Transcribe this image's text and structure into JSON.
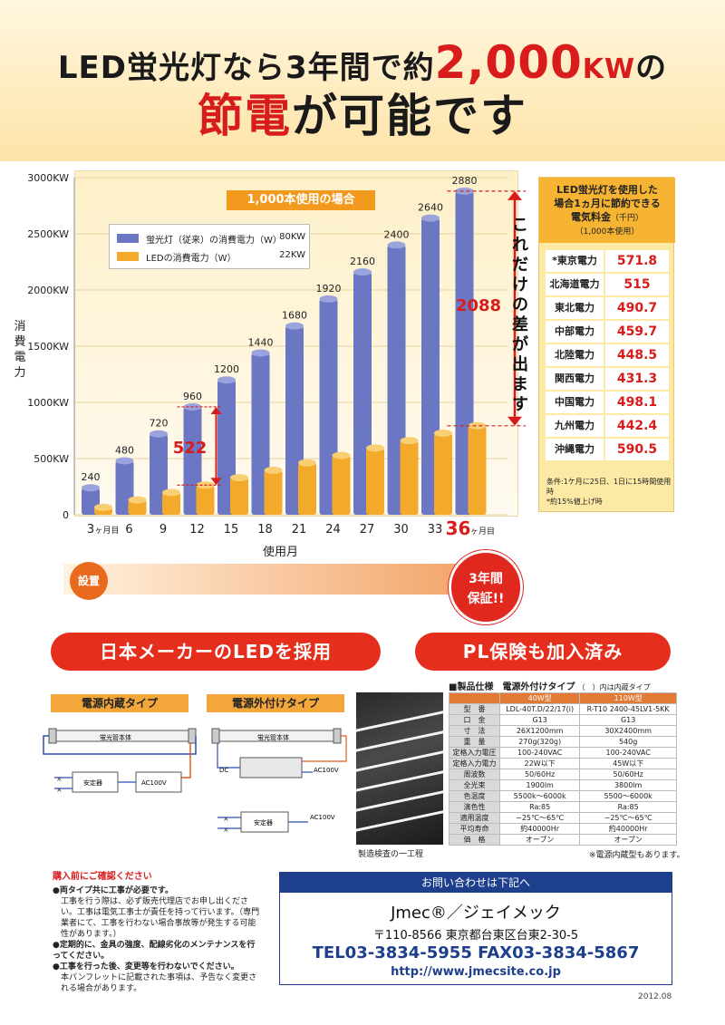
{
  "header": {
    "line1_a": "LED蛍光灯なら3年間で約",
    "line1_big": "2,000",
    "line1_unit": "KW",
    "line1_b": "の",
    "line2_red": "節電",
    "line2_rest": "が可能です"
  },
  "chart_data": {
    "type": "bar",
    "title": "1,000本使用の場合",
    "ylabel": "消費電力",
    "xlabel": "使用月",
    "y_ticks": [
      "0",
      "500KW",
      "1000KW",
      "1500KW",
      "2000KW",
      "2500KW",
      "3000KW"
    ],
    "ylim": [
      0,
      3000
    ],
    "categories": [
      "3ヶ月目",
      "6",
      "9",
      "12",
      "15",
      "18",
      "21",
      "24",
      "27",
      "30",
      "33",
      "36ヶ月目"
    ],
    "series": [
      {
        "name": "蛍光灯（従来）の消費電力（W）",
        "legend_value": "80KW",
        "color": "#6b77c2",
        "values": [
          240,
          480,
          720,
          960,
          1200,
          1440,
          1680,
          1920,
          2160,
          2400,
          2640,
          2880
        ]
      },
      {
        "name": "LEDの消費電力（W）",
        "legend_value": "22KW",
        "color": "#f3a92a",
        "values": [
          66,
          132,
          198,
          264,
          330,
          396,
          462,
          528,
          594,
          660,
          726,
          792
        ]
      }
    ],
    "value_labels": [
      "240",
      "480",
      "720",
      "960",
      "1200",
      "1440",
      "1680",
      "1920",
      "2160",
      "2400",
      "2640",
      "2880"
    ],
    "annotations": [
      {
        "text": "522",
        "at_category": "12"
      },
      {
        "text": "2088",
        "at_category": "36ヶ月目"
      }
    ],
    "side_text": "これだけの差が出ます"
  },
  "price": {
    "head_line1": "LED蛍光灯を使用した",
    "head_line2": "場合1ヵ月に節約できる",
    "head_line3": "電気料金",
    "head_unit": "（千円）",
    "head_line4": "（1,000本使用）",
    "rows": [
      {
        "name": "*東京電力",
        "value": "571.8"
      },
      {
        "name": "北海道電力",
        "value": "515"
      },
      {
        "name": "東北電力",
        "value": "490.7"
      },
      {
        "name": "中部電力",
        "value": "459.7"
      },
      {
        "name": "北陸電力",
        "value": "448.5"
      },
      {
        "name": "関西電力",
        "value": "431.3"
      },
      {
        "name": "中国電力",
        "value": "498.1"
      },
      {
        "name": "九州電力",
        "value": "442.4"
      },
      {
        "name": "沖縄電力",
        "value": "590.5"
      }
    ],
    "note1": "条件:1ケ月に25日、1日に15時間使用時",
    "note2": "*約15%値上げ時"
  },
  "timeline": {
    "start": "設置",
    "end_line1": "3年間",
    "end_line2": "保証!!"
  },
  "banners": {
    "left": "日本メーカーのLEDを採用",
    "right": "PL保険も加入済み"
  },
  "diagrams": {
    "internal_title": "電源内蔵タイプ",
    "external_title": "電源外付けタイプ",
    "body_label": "蛍光管本体",
    "ballast": "安定器",
    "ac": "AC100V",
    "dc": "DC"
  },
  "photo_caption": "製造検査の一工程",
  "spec": {
    "title_main": "■製品仕様　電源外付けタイプ",
    "title_note": "（　）内は内蔵タイプ",
    "cols": [
      "40W型",
      "110W型"
    ],
    "rows": [
      {
        "k": "型　番",
        "a": "LDL-40T.D/22/17(i)",
        "b": "R-T10 2400-45LV1-5KK"
      },
      {
        "k": "口　金",
        "a": "G13",
        "b": "G13"
      },
      {
        "k": "寸　法",
        "a": "26X1200mm",
        "b": "30X2400mm"
      },
      {
        "k": "重　量",
        "a": "270g(320g)",
        "b": "540g"
      },
      {
        "k": "定格入力電圧",
        "a": "100-240VAC",
        "b": "100-240VAC"
      },
      {
        "k": "定格入力電力",
        "a": "22W以下",
        "b": "45W以下"
      },
      {
        "k": "周波数",
        "a": "50/60Hz",
        "b": "50/60Hz"
      },
      {
        "k": "全光束",
        "a": "1900lm",
        "b": "3800lm"
      },
      {
        "k": "色温度",
        "a": "5500k～6000k",
        "b": "5500～6000k"
      },
      {
        "k": "演色性",
        "a": "Ra:85",
        "b": "Ra:85"
      },
      {
        "k": "適用温度",
        "a": "−25℃～65℃",
        "b": "−25℃～65℃"
      },
      {
        "k": "平均寿命",
        "a": "約40000Hr",
        "b": "約40000Hr"
      },
      {
        "k": "価　格",
        "a": "オープン",
        "b": "オープン"
      }
    ],
    "note": "※電源内蔵型もあります。"
  },
  "notice": {
    "title": "購入前にご確認ください",
    "items": [
      {
        "h": "●両タイプ共に工事が必要です。",
        "d": "工事を行う際は、必ず販売代理店でお申し出ください。工事は電気工事士が責任を持って行います。（専門業者にて、工事を行わない場合事故等が発生する可能性があります。）"
      },
      {
        "h": "●定期的に、金具の強度、配線劣化のメンテナンスを行ってください。",
        "d": ""
      },
      {
        "h": "●工事を行った後、変更等を行わないでください。",
        "d": "本パンフレットに記載された事項は、予告なく変更される場合があります。"
      }
    ]
  },
  "contact": {
    "bar": "お問い合わせは下記へ",
    "company": "Jmec®／ジェイメック",
    "address": "〒110-8566 東京都台東区台東2-30-5",
    "tel": "TEL03-3834-5955 FAX03-3834-5867",
    "url": "http://www.jmecsite.co.jp"
  },
  "date": "2012.08"
}
